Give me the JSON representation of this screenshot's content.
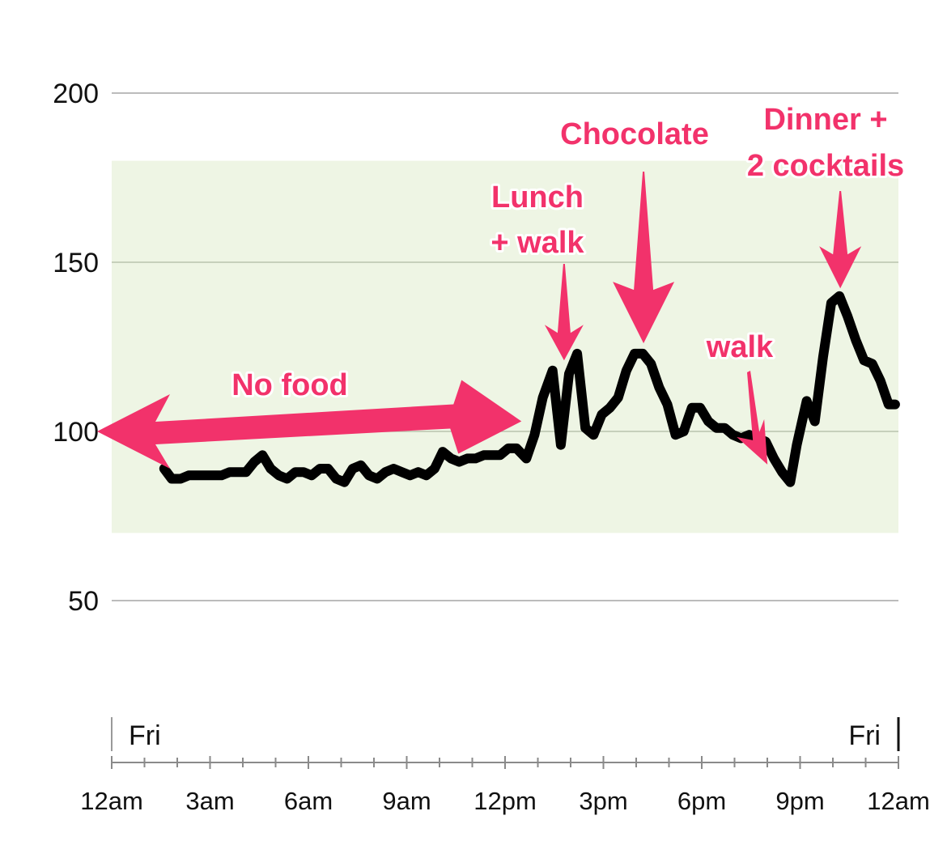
{
  "chart_data": {
    "type": "line",
    "title": "",
    "xlabel": "",
    "ylabel": "",
    "ylim": [
      0,
      200
    ],
    "xlim": [
      0,
      24
    ],
    "yticks": [
      50,
      100,
      150,
      200
    ],
    "ytick_labels": [
      "50",
      "100",
      "150",
      "200"
    ],
    "xticks": [
      0,
      3,
      6,
      9,
      12,
      15,
      18,
      21,
      24
    ],
    "xtick_labels": [
      "12am",
      "3am",
      "6am",
      "9am",
      "12pm",
      "3pm",
      "6pm",
      "9pm",
      "12am"
    ],
    "minor_tick_step_hours": 1,
    "day_labels": [
      {
        "x": 0,
        "text": "Fri",
        "align": "left"
      },
      {
        "x": 24,
        "text": "Fri",
        "align": "right"
      }
    ],
    "target_band": {
      "low": 70,
      "high": 180,
      "color": "#eef5e4"
    },
    "grid": true,
    "line_color": "#000000",
    "annotation_color": "#f2326b",
    "series": [
      {
        "name": "",
        "x": [
          1.6,
          1.83,
          2.1,
          2.35,
          2.6,
          2.85,
          3.1,
          3.35,
          3.6,
          3.85,
          4.1,
          4.35,
          4.6,
          4.85,
          5.1,
          5.35,
          5.6,
          5.85,
          6.1,
          6.35,
          6.6,
          6.85,
          7.1,
          7.35,
          7.6,
          7.85,
          8.1,
          8.35,
          8.6,
          8.85,
          9.1,
          9.35,
          9.6,
          9.85,
          10.1,
          10.35,
          10.6,
          10.85,
          11.1,
          11.35,
          11.6,
          11.85,
          12.1,
          12.35,
          12.65,
          12.9,
          13.15,
          13.45,
          13.7,
          13.95,
          14.2,
          14.45,
          14.7,
          14.95,
          15.2,
          15.45,
          15.7,
          15.95,
          16.2,
          16.45,
          16.7,
          16.95,
          17.2,
          17.45,
          17.7,
          17.95,
          18.2,
          18.45,
          18.7,
          18.95,
          19.2,
          19.45,
          19.7,
          19.95,
          20.2,
          20.45,
          20.7,
          20.9,
          21.2,
          21.45,
          21.7,
          21.95,
          22.2,
          22.45,
          22.7,
          22.95,
          23.2,
          23.45,
          23.7,
          23.9
        ],
        "y": [
          89,
          86,
          86,
          87,
          87,
          87,
          87,
          87,
          88,
          88,
          88,
          91,
          93,
          89,
          87,
          86,
          88,
          88,
          87,
          89,
          89,
          86,
          85,
          89,
          90,
          87,
          86,
          88,
          89,
          88,
          87,
          88,
          87,
          89,
          94,
          92,
          91,
          92,
          92,
          93,
          93,
          93,
          95,
          95,
          92,
          99,
          110,
          118,
          96,
          117,
          123,
          101,
          99,
          105,
          107,
          110,
          118,
          123,
          123,
          120,
          113,
          108,
          99,
          100,
          107,
          107,
          103,
          101,
          101,
          99,
          98,
          99,
          98,
          97,
          92,
          88,
          85,
          96,
          109,
          103,
          122,
          138,
          140,
          134,
          127,
          121,
          120,
          115,
          108,
          108
        ]
      }
    ],
    "annotations": [
      {
        "text": "No food",
        "lines": [
          "No food"
        ],
        "arrow": "double",
        "from": [
          0,
          100
        ],
        "to": [
          12.5,
          103
        ]
      },
      {
        "text": "Lunch + walk",
        "lines": [
          "Lunch",
          "+ walk"
        ],
        "arrow": "down",
        "target": [
          13.8,
          121
        ]
      },
      {
        "text": "Chocolate",
        "lines": [
          "Chocolate"
        ],
        "arrow": "down",
        "target": [
          16.2,
          127
        ]
      },
      {
        "text": "walk",
        "lines": [
          "walk"
        ],
        "arrow": "diag",
        "target": [
          20.3,
          95
        ]
      },
      {
        "text": "Dinner + 2 cocktails",
        "lines": [
          "Dinner +",
          "2 cocktails"
        ],
        "arrow": "down",
        "target": [
          22.3,
          143
        ]
      }
    ]
  }
}
